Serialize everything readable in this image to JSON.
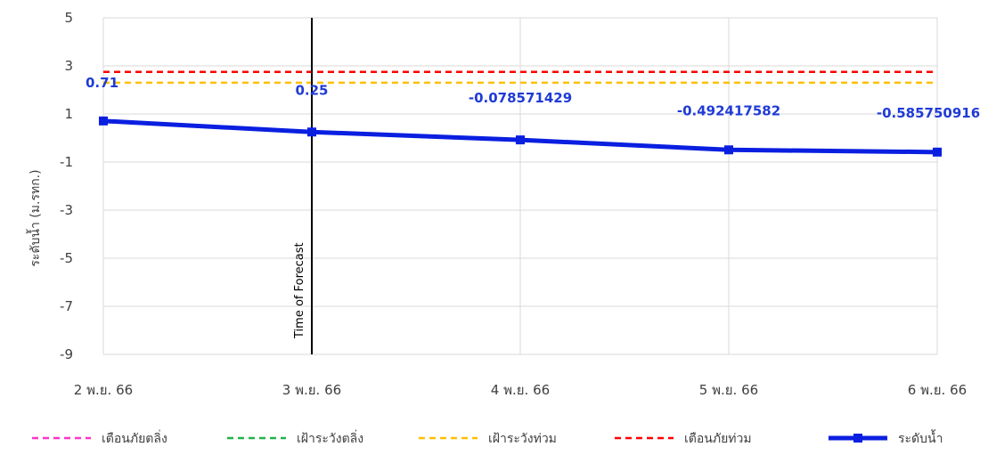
{
  "chart_data": {
    "type": "line",
    "ylabel": "ระดับน้ำ (ม.รทก.)",
    "ylim": [
      -9,
      5
    ],
    "yticks": [
      5,
      3,
      1,
      -1,
      -3,
      -5,
      -7,
      -9
    ],
    "categories": [
      "2 พ.ย. 66",
      "3 พ.ย. 66",
      "4 พ.ย. 66",
      "5 พ.ย. 66",
      "6 พ.ย. 66"
    ],
    "grid": true,
    "legend_position": "bottom",
    "series": [
      {
        "name": "ระดับน้ำ",
        "color": "#0a1fe0",
        "values": [
          0.71,
          0.25,
          -0.078571429,
          -0.492417582,
          -0.585750916
        ],
        "labels": [
          "0.71",
          "0.25",
          "-0.078571429",
          "-0.492417582",
          "-0.585750916"
        ]
      }
    ],
    "reference_lines": [
      {
        "name": "เตือนภัยตลิ่ง",
        "color": "#ff33cc",
        "value": null
      },
      {
        "name": "เฝ้าระวังตลิ่ง",
        "color": "#22b14c",
        "value": null
      },
      {
        "name": "เฝ้าระวังท่วม",
        "color": "#ffc000",
        "value": 2.3
      },
      {
        "name": "เตือนภัยท่วม",
        "color": "#ff0000",
        "value": 2.75
      }
    ],
    "annotation": {
      "text": "Time of Forecast",
      "category_index": 1
    }
  }
}
